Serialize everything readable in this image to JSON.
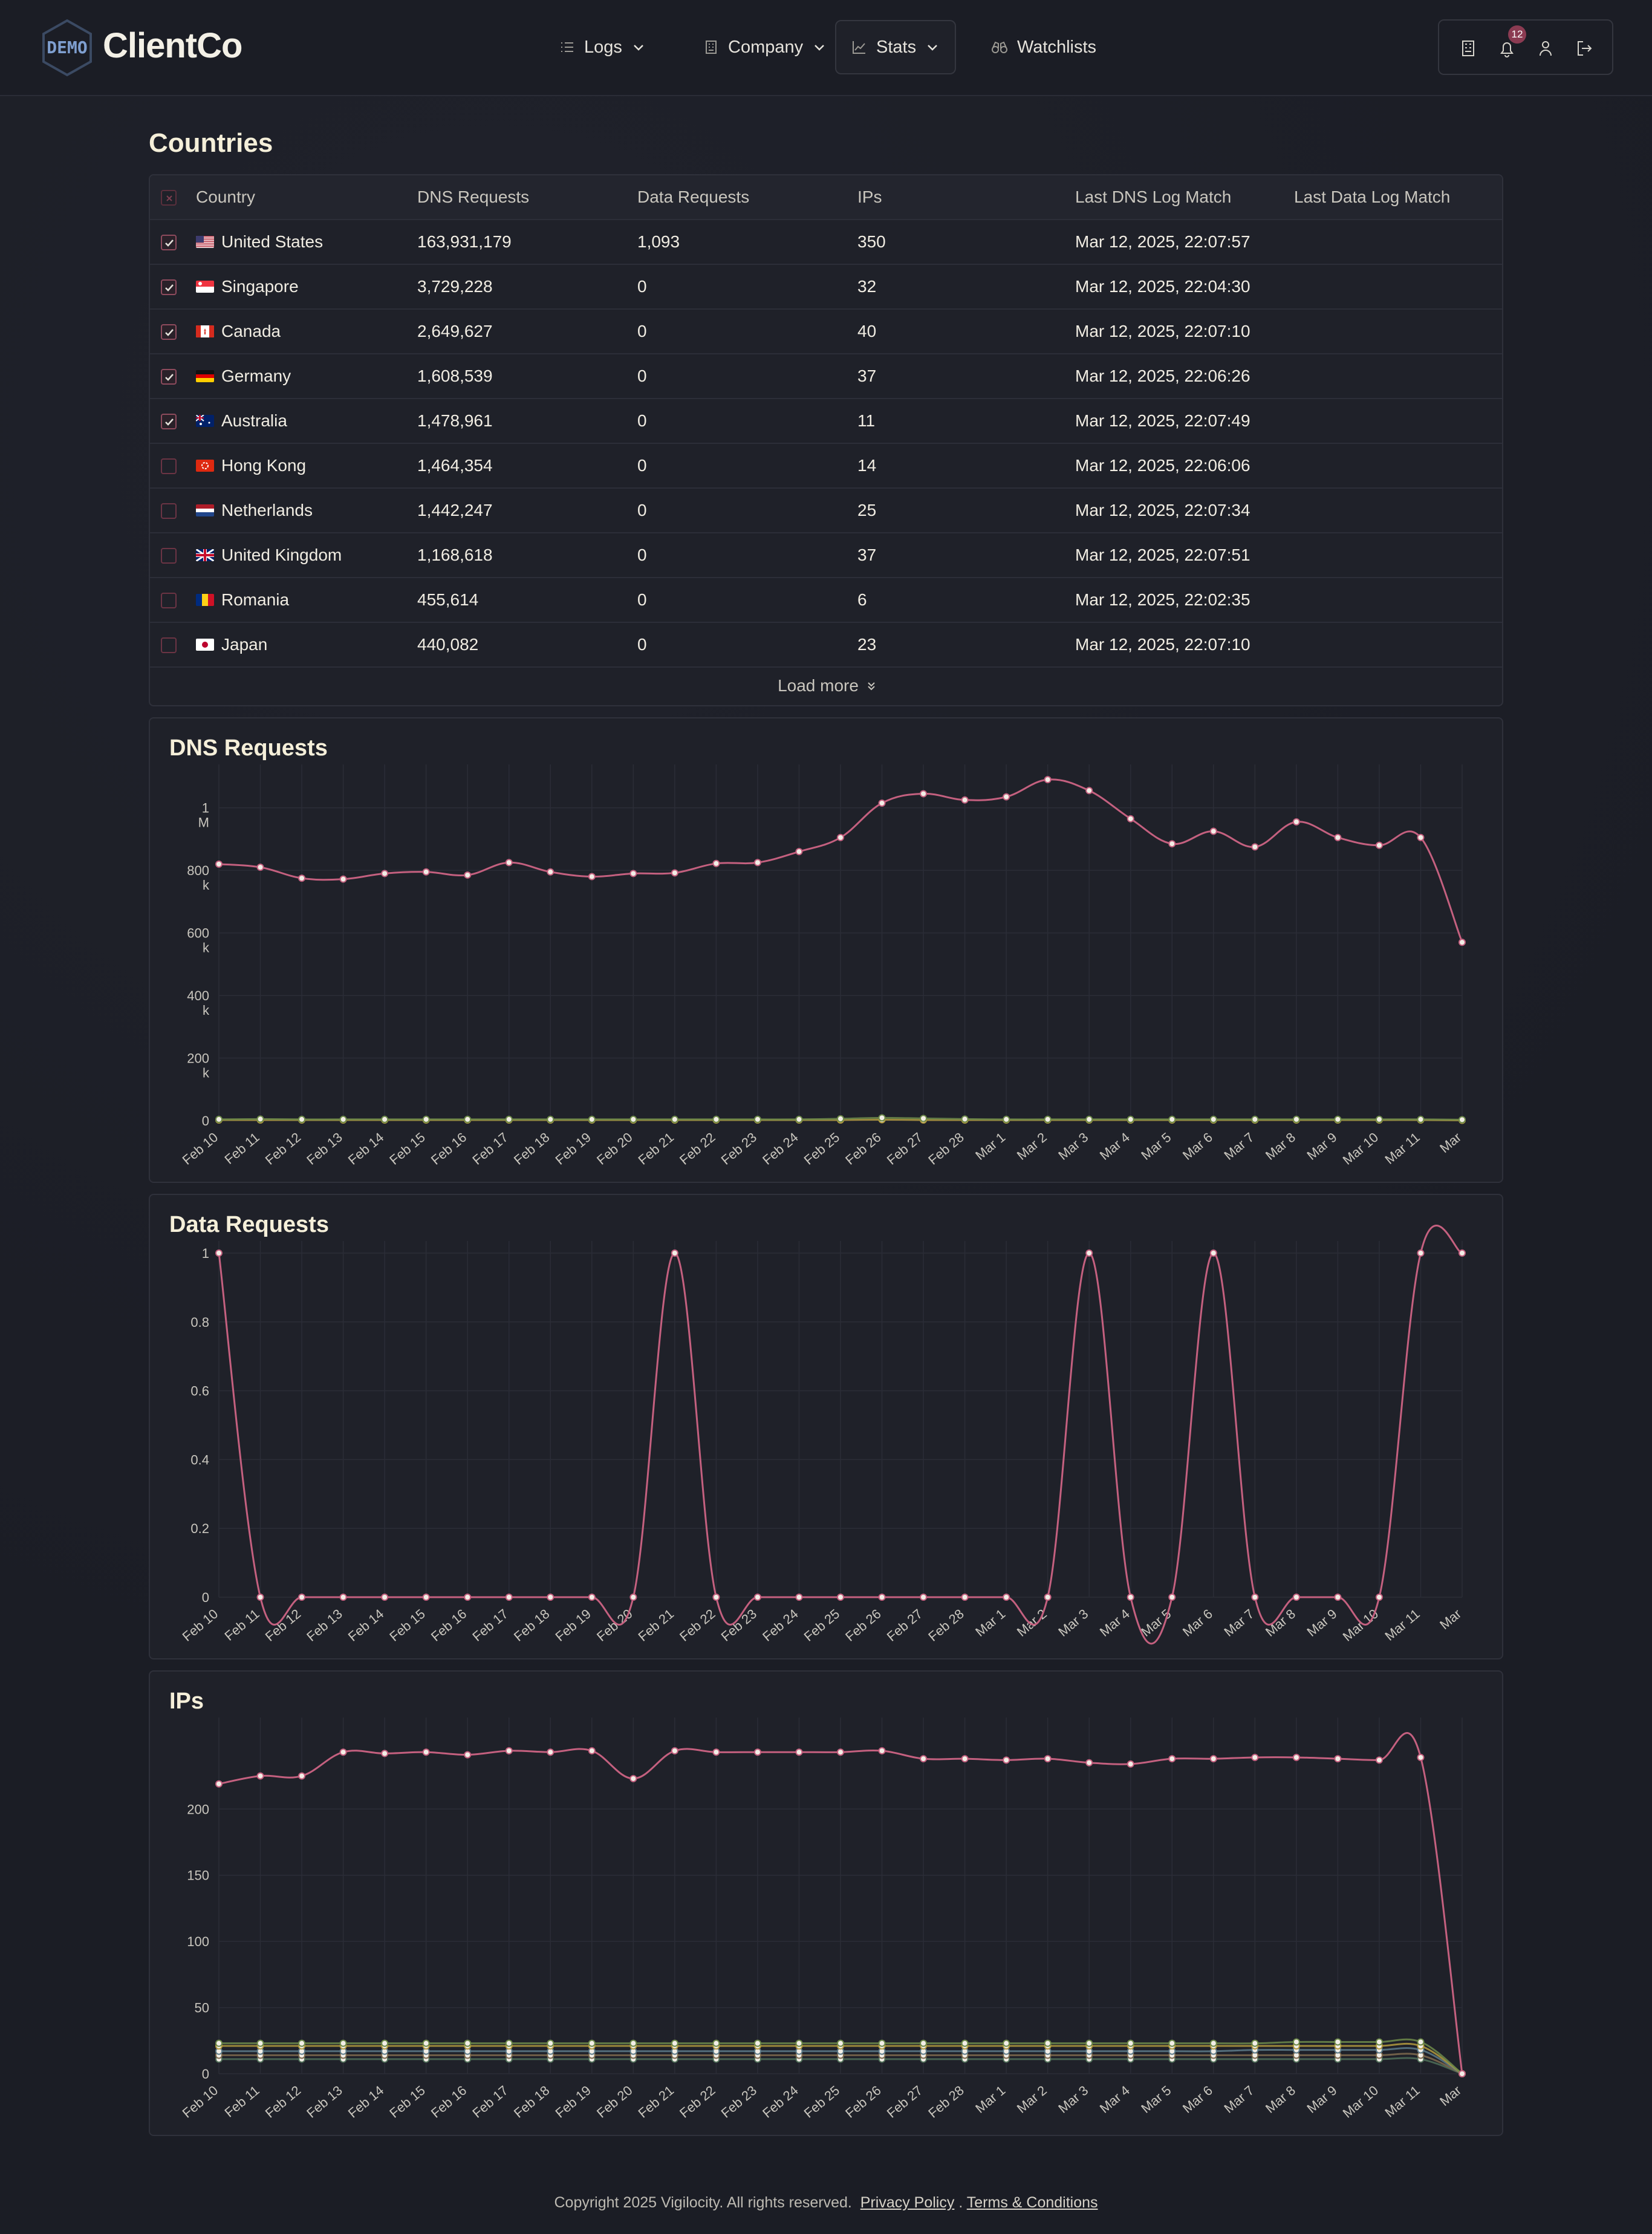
{
  "brand": {
    "logo_text": "DEMO",
    "name": "ClientCo"
  },
  "nav": {
    "items": [
      {
        "label": "Logs",
        "icon": "list-icon",
        "dropdown": true
      },
      {
        "label": "Company",
        "icon": "building-icon",
        "dropdown": true
      },
      {
        "label": "Stats",
        "icon": "chart-line-icon",
        "dropdown": true,
        "active": true
      },
      {
        "label": "Watchlists",
        "icon": "binoculars-icon",
        "dropdown": false
      }
    ],
    "notification_count": "12",
    "right_icons": [
      "building-icon",
      "bell-icon",
      "user-icon",
      "logout-icon"
    ]
  },
  "countries": {
    "title": "Countries",
    "columns": [
      "Country",
      "DNS Requests",
      "Data Requests",
      "IPs",
      "Last DNS Log Match",
      "Last Data Log Match"
    ],
    "rows": [
      {
        "checked": true,
        "flag": "us",
        "country": "United States",
        "dns": "163,931,179",
        "data": "1,093",
        "ips": "350",
        "last_dns": "Mar 12, 2025, 22:07:57",
        "last_data": ""
      },
      {
        "checked": true,
        "flag": "sg",
        "country": "Singapore",
        "dns": "3,729,228",
        "data": "0",
        "ips": "32",
        "last_dns": "Mar 12, 2025, 22:04:30",
        "last_data": ""
      },
      {
        "checked": true,
        "flag": "ca",
        "country": "Canada",
        "dns": "2,649,627",
        "data": "0",
        "ips": "40",
        "last_dns": "Mar 12, 2025, 22:07:10",
        "last_data": ""
      },
      {
        "checked": true,
        "flag": "de",
        "country": "Germany",
        "dns": "1,608,539",
        "data": "0",
        "ips": "37",
        "last_dns": "Mar 12, 2025, 22:06:26",
        "last_data": ""
      },
      {
        "checked": true,
        "flag": "au",
        "country": "Australia",
        "dns": "1,478,961",
        "data": "0",
        "ips": "11",
        "last_dns": "Mar 12, 2025, 22:07:49",
        "last_data": ""
      },
      {
        "checked": false,
        "flag": "hk",
        "country": "Hong Kong",
        "dns": "1,464,354",
        "data": "0",
        "ips": "14",
        "last_dns": "Mar 12, 2025, 22:06:06",
        "last_data": ""
      },
      {
        "checked": false,
        "flag": "nl",
        "country": "Netherlands",
        "dns": "1,442,247",
        "data": "0",
        "ips": "25",
        "last_dns": "Mar 12, 2025, 22:07:34",
        "last_data": ""
      },
      {
        "checked": false,
        "flag": "gb",
        "country": "United Kingdom",
        "dns": "1,168,618",
        "data": "0",
        "ips": "37",
        "last_dns": "Mar 12, 2025, 22:07:51",
        "last_data": ""
      },
      {
        "checked": false,
        "flag": "ro",
        "country": "Romania",
        "dns": "455,614",
        "data": "0",
        "ips": "6",
        "last_dns": "Mar 12, 2025, 22:02:35",
        "last_data": ""
      },
      {
        "checked": false,
        "flag": "jp",
        "country": "Japan",
        "dns": "440,082",
        "data": "0",
        "ips": "23",
        "last_dns": "Mar 12, 2025, 22:07:10",
        "last_data": ""
      }
    ],
    "load_more": "Load more"
  },
  "colors": {
    "accent": "#c4607f",
    "background": "#1b1d25",
    "card": "#1f2129",
    "title": "#f5efd9",
    "series_minor": [
      "#6d8a4a",
      "#b39a3e",
      "#5d7a88",
      "#7f6a4e",
      "#4f6e58"
    ]
  },
  "chart_data": [
    {
      "type": "line",
      "title": "DNS Requests",
      "x": [
        "Feb 10",
        "Feb 11",
        "Feb 12",
        "Feb 13",
        "Feb 14",
        "Feb 15",
        "Feb 16",
        "Feb 17",
        "Feb 18",
        "Feb 19",
        "Feb 20",
        "Feb 21",
        "Feb 22",
        "Feb 23",
        "Feb 24",
        "Feb 25",
        "Feb 26",
        "Feb 27",
        "Feb 28",
        "Mar 1",
        "Mar 2",
        "Mar 3",
        "Mar 4",
        "Mar 5",
        "Mar 6",
        "Mar 7",
        "Mar 8",
        "Mar 9",
        "Mar 10",
        "Mar 11",
        "Mar"
      ],
      "yticks": [
        "0",
        "200 k",
        "400 k",
        "600 k",
        "800 k",
        "1 M"
      ],
      "ylim": [
        0,
        1100000
      ],
      "series": [
        {
          "values": [
            820000,
            810000,
            775000,
            772000,
            790000,
            795000,
            785000,
            825000,
            795000,
            780000,
            790000,
            792000,
            822000,
            825000,
            860000,
            905000,
            1015000,
            1045000,
            1025000,
            1035000,
            1090000,
            1055000,
            965000,
            885000,
            925000,
            875000,
            955000,
            905000,
            880000,
            905000,
            570000
          ]
        },
        {
          "values": [
            4000,
            5000,
            4000,
            4000,
            4000,
            4000,
            4000,
            4000,
            4000,
            4000,
            4000,
            4000,
            4000,
            4000,
            4000,
            6000,
            9000,
            7000,
            5000,
            4000,
            4000,
            4000,
            4000,
            4000,
            4000,
            4000,
            4000,
            4000,
            4000,
            4000,
            3000
          ]
        },
        {
          "values": [
            2000,
            2000,
            2000,
            2000,
            2000,
            2000,
            2000,
            2000,
            2000,
            2000,
            2000,
            2000,
            2000,
            2000,
            2000,
            2000,
            3000,
            2000,
            2000,
            2000,
            2000,
            2000,
            2000,
            2000,
            2000,
            2000,
            2000,
            2000,
            2000,
            2000,
            1000
          ]
        }
      ]
    },
    {
      "type": "line",
      "title": "Data Requests",
      "x": [
        "Feb 10",
        "Feb 11",
        "Feb 12",
        "Feb 13",
        "Feb 14",
        "Feb 15",
        "Feb 16",
        "Feb 17",
        "Feb 18",
        "Feb 19",
        "Feb 20",
        "Feb 21",
        "Feb 22",
        "Feb 23",
        "Feb 24",
        "Feb 25",
        "Feb 26",
        "Feb 27",
        "Feb 28",
        "Mar 1",
        "Mar 2",
        "Mar 3",
        "Mar 4",
        "Mar 5",
        "Mar 6",
        "Mar 7",
        "Mar 8",
        "Mar 9",
        "Mar 10",
        "Mar 11",
        "Mar"
      ],
      "yticks": [
        "0",
        "0.2",
        "0.4",
        "0.6",
        "0.8",
        "1"
      ],
      "ylim": [
        0,
        1
      ],
      "series": [
        {
          "values": [
            1,
            0,
            0,
            0,
            0,
            0,
            0,
            0,
            0,
            0,
            0,
            1,
            0,
            0,
            0,
            0,
            0,
            0,
            0,
            0,
            0,
            1,
            0,
            0,
            1,
            0,
            0,
            0,
            0,
            1,
            1
          ]
        }
      ]
    },
    {
      "type": "line",
      "title": "IPs",
      "x": [
        "Feb 10",
        "Feb 11",
        "Feb 12",
        "Feb 13",
        "Feb 14",
        "Feb 15",
        "Feb 16",
        "Feb 17",
        "Feb 18",
        "Feb 19",
        "Feb 20",
        "Feb 21",
        "Feb 22",
        "Feb 23",
        "Feb 24",
        "Feb 25",
        "Feb 26",
        "Feb 27",
        "Feb 28",
        "Mar 1",
        "Mar 2",
        "Mar 3",
        "Mar 4",
        "Mar 5",
        "Mar 6",
        "Mar 7",
        "Mar 8",
        "Mar 9",
        "Mar 10",
        "Mar 11",
        "Mar"
      ],
      "yticks": [
        "0",
        "50",
        "100",
        "150",
        "200"
      ],
      "ylim": [
        0,
        260
      ],
      "series": [
        {
          "values": [
            219,
            225,
            225,
            243,
            242,
            243,
            241,
            244,
            243,
            244,
            223,
            244,
            243,
            243,
            243,
            243,
            244,
            238,
            238,
            237,
            238,
            235,
            234,
            238,
            238,
            239,
            239,
            238,
            237,
            239,
            0
          ]
        },
        {
          "values": [
            23,
            23,
            23,
            23,
            23,
            23,
            23,
            23,
            23,
            23,
            23,
            23,
            23,
            23,
            23,
            23,
            23,
            23,
            23,
            23,
            23,
            23,
            23,
            23,
            23,
            23,
            24,
            24,
            24,
            24,
            0
          ]
        },
        {
          "values": [
            21,
            21,
            21,
            21,
            21,
            21,
            21,
            21,
            21,
            21,
            21,
            21,
            21,
            21,
            21,
            21,
            21,
            21,
            21,
            21,
            21,
            21,
            21,
            21,
            21,
            21,
            21,
            21,
            21,
            21,
            0
          ]
        },
        {
          "values": [
            17,
            17,
            17,
            17,
            17,
            17,
            17,
            17,
            17,
            17,
            17,
            17,
            17,
            17,
            17,
            17,
            17,
            17,
            17,
            17,
            17,
            17,
            17,
            17,
            17,
            18,
            18,
            18,
            18,
            18,
            0
          ]
        },
        {
          "values": [
            14,
            14,
            14,
            14,
            14,
            14,
            14,
            14,
            14,
            14,
            14,
            14,
            14,
            14,
            14,
            14,
            14,
            14,
            14,
            14,
            14,
            14,
            14,
            14,
            14,
            14,
            14,
            14,
            14,
            14,
            0
          ]
        },
        {
          "values": [
            11,
            11,
            11,
            11,
            11,
            11,
            11,
            11,
            11,
            11,
            11,
            11,
            11,
            11,
            11,
            11,
            11,
            11,
            11,
            11,
            11,
            11,
            11,
            11,
            11,
            11,
            11,
            11,
            11,
            11,
            0
          ]
        }
      ]
    }
  ],
  "footer": {
    "copyright": "Copyright 2025 Vigilocity. All rights reserved.",
    "privacy": "Privacy Policy",
    "separator": ".",
    "terms": "Terms & Conditions"
  }
}
